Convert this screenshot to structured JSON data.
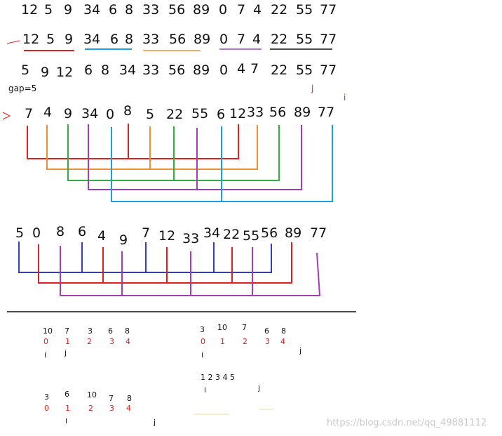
{
  "rows": {
    "row1": [
      "12",
      "5",
      "9",
      "34",
      "6",
      "8",
      "33",
      "56",
      "89",
      "0",
      "7",
      "4",
      "22",
      "55",
      "77"
    ],
    "row2": [
      "12",
      "5",
      "9",
      "34",
      "6",
      "8",
      "33",
      "56",
      "89",
      "0",
      "7",
      "4",
      "22",
      "55",
      "77"
    ],
    "row3": [
      "5",
      "9",
      "12",
      "6",
      "8",
      "34",
      "33",
      "56",
      "89",
      "0",
      "4",
      "7",
      "22",
      "55",
      "77"
    ],
    "row4": [
      "7",
      "4",
      "9",
      "34",
      "0",
      "8",
      "5",
      "22",
      "55",
      "6",
      "12",
      "33",
      "56",
      "89",
      "77"
    ],
    "row5": [
      "5",
      "0",
      "8",
      "6",
      "4",
      "9",
      "7",
      "12",
      "33",
      "34",
      "22",
      "55",
      "56",
      "89",
      "77"
    ]
  },
  "labels": {
    "gap": "gap=5",
    "j": "j",
    "i": "i"
  },
  "bottom": {
    "blockA": {
      "values": [
        "10",
        "7",
        "3",
        "6",
        "8"
      ],
      "indices": [
        "0",
        "1",
        "2",
        "3",
        "4"
      ],
      "i": "i",
      "j": "j"
    },
    "blockB": {
      "values": [
        "3",
        "10",
        "7",
        "6",
        "8"
      ],
      "indices": [
        "0",
        "1",
        "2",
        "3",
        "4"
      ],
      "i": "i",
      "j": "j"
    },
    "blockC": {
      "seq": "1 2 3 4 5",
      "i": "i",
      "j": "j"
    },
    "blockD": {
      "values": [
        "3",
        "6",
        "10",
        "7",
        "8"
      ],
      "indices": [
        "0",
        "1",
        "2",
        "3",
        "4"
      ],
      "i": "i",
      "j": "j"
    }
  },
  "watermark": "https://blog.csdn.net/qq_49881112",
  "colors": {
    "red": "#e02020",
    "blue": "#1aa0e0",
    "orange": "#f09030",
    "purple": "#a040b0",
    "green": "#30b040",
    "black": "#111111",
    "navy": "#3040c0"
  }
}
